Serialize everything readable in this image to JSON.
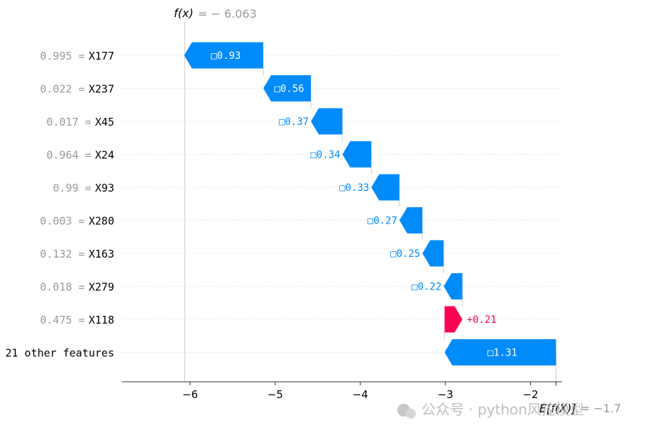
{
  "chart_data": {
    "type": "waterfall",
    "fx_label": "f(x)",
    "fx_value_text": "= − 6.063",
    "ex_label": "E[f(X)]",
    "ex_value_text": "= −1.7",
    "fx": -6.063,
    "ex": -1.7,
    "xlim": [
      -6.8,
      -1.63
    ],
    "xticks": [
      -6,
      -5,
      -4,
      -3,
      -2
    ],
    "xtick_labels": [
      "−6",
      "−5",
      "−4",
      "−3",
      "−2"
    ],
    "features": [
      {
        "value": "0.995",
        "name": "X177",
        "contribution": -0.93,
        "label": "□0.93"
      },
      {
        "value": "0.022",
        "name": "X237",
        "contribution": -0.56,
        "label": "□0.56"
      },
      {
        "value": "0.017",
        "name": "X45",
        "contribution": -0.37,
        "label": "□0.37"
      },
      {
        "value": "0.964",
        "name": "X24",
        "contribution": -0.34,
        "label": "□0.34"
      },
      {
        "value": "0.99",
        "name": "X93",
        "contribution": -0.33,
        "label": "□0.33"
      },
      {
        "value": "0.003",
        "name": "X280",
        "contribution": -0.27,
        "label": "□0.27"
      },
      {
        "value": "0.132",
        "name": "X163",
        "contribution": -0.25,
        "label": "□0.25"
      },
      {
        "value": "0.018",
        "name": "X279",
        "contribution": -0.22,
        "label": "□0.22"
      },
      {
        "value": "0.475",
        "name": "X118",
        "contribution": 0.21,
        "label": "+0.21"
      },
      {
        "value": "",
        "name": "21 other features",
        "contribution": -1.31,
        "label": "□1.31"
      }
    ],
    "colors": {
      "negative": "#008bfb",
      "positive": "#ff0051",
      "value_text": "#999999",
      "axis": "#333333",
      "grid": "#e4e4e4"
    }
  },
  "watermark": {
    "text": "公众号 · python风控模型"
  }
}
